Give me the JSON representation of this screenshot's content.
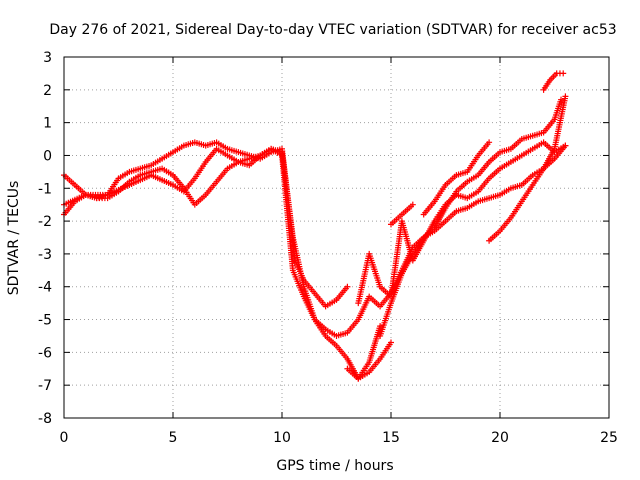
{
  "chart_data": {
    "type": "scatter",
    "title": "Day 276 of 2021, Sidereal Day-to-day VTEC variation (SDTVAR) for receiver ac53",
    "xlabel": "GPS time / hours",
    "ylabel": "SDTVAR / TECUs",
    "xlim": [
      0,
      25
    ],
    "ylim": [
      -8,
      3
    ],
    "xticks": [
      "0",
      "5",
      "10",
      "15",
      "20",
      "25"
    ],
    "yticks": [
      "3",
      "2",
      "1",
      "0",
      "-1",
      "-2",
      "-3",
      "-4",
      "-5",
      "-6",
      "-7",
      "-8"
    ],
    "grid": true,
    "marker": "+",
    "color": "#ff0000",
    "series": [
      {
        "x": [
          0.0,
          0.5,
          1.0,
          1.5,
          2.0,
          2.5,
          3.0,
          3.5,
          4.0,
          4.5,
          5.0,
          5.5,
          6.0,
          6.5,
          7.0,
          7.5,
          8.0,
          8.5,
          9.0,
          9.5,
          10.0,
          10.3,
          10.6,
          11.0,
          11.5,
          12.0,
          12.5,
          13.0
        ],
        "y": [
          -1.8,
          -1.4,
          -1.2,
          -1.3,
          -1.2,
          -0.7,
          -0.5,
          -0.4,
          -0.3,
          -0.1,
          0.1,
          0.3,
          0.4,
          0.3,
          0.4,
          0.2,
          0.1,
          0.0,
          -0.1,
          0.1,
          0.2,
          -1.5,
          -3.2,
          -3.8,
          -4.2,
          -4.6,
          -4.4,
          -4.0
        ]
      },
      {
        "x": [
          0.0,
          0.5,
          1.0,
          1.5,
          2.0,
          2.5,
          3.0,
          3.5,
          4.0,
          4.5,
          5.0,
          5.5,
          6.0,
          6.5,
          7.0,
          7.5,
          8.0,
          8.5,
          9.0,
          9.5,
          10.0,
          10.5,
          11.0,
          11.5,
          12.0,
          12.5,
          13.0,
          13.5,
          14.0,
          14.5
        ],
        "y": [
          -0.6,
          -0.9,
          -1.2,
          -1.3,
          -1.3,
          -1.1,
          -0.8,
          -0.6,
          -0.5,
          -0.4,
          -0.6,
          -1.0,
          -1.5,
          -1.2,
          -0.8,
          -0.4,
          -0.2,
          -0.1,
          0.0,
          0.2,
          0.1,
          -2.5,
          -4.0,
          -5.0,
          -5.5,
          -5.8,
          -6.2,
          -6.8,
          -6.3,
          -5.2
        ]
      },
      {
        "x": [
          0.0,
          1.0,
          2.0,
          3.0,
          4.0,
          5.0,
          5.5,
          6.0,
          6.5,
          7.0,
          7.5,
          8.0,
          8.5,
          9.0,
          9.5,
          10.0,
          10.5,
          11.0,
          11.5,
          12.0,
          12.5,
          13.0,
          13.5,
          14.0,
          14.5,
          15.0,
          15.5,
          16.0,
          16.5,
          17.0,
          17.5,
          18.0,
          18.5,
          19.0,
          19.5,
          20.0,
          20.5,
          21.0,
          21.5,
          22.0,
          22.5,
          23.0
        ],
        "y": [
          -1.5,
          -1.2,
          -1.2,
          -0.9,
          -0.6,
          -0.9,
          -1.1,
          -0.7,
          -0.2,
          0.2,
          0.0,
          -0.2,
          -0.3,
          0.0,
          0.2,
          0.0,
          -3.5,
          -4.3,
          -5.0,
          -5.3,
          -5.5,
          -5.4,
          -5.0,
          -4.3,
          -4.6,
          -4.2,
          -3.5,
          -2.8,
          -2.5,
          -2.3,
          -2.0,
          -1.7,
          -1.6,
          -1.4,
          -1.3,
          -1.2,
          -1.0,
          -0.9,
          -0.6,
          -0.4,
          -0.1,
          0.3
        ]
      },
      {
        "x": [
          13.5,
          14.0,
          14.5,
          15.0,
          15.5,
          16.0,
          16.5,
          17.0,
          17.5,
          18.0,
          18.5,
          19.0,
          19.5,
          20.0,
          20.5,
          21.0,
          21.5,
          22.0,
          22.5,
          23.0
        ],
        "y": [
          -4.5,
          -3.0,
          -4.0,
          -4.3,
          -2.0,
          -3.2,
          -2.6,
          -2.0,
          -1.5,
          -1.2,
          -1.3,
          -1.1,
          -0.7,
          -0.4,
          -0.2,
          0.0,
          0.2,
          0.4,
          0.1,
          0.3
        ]
      },
      {
        "x": [
          14.5,
          15.0,
          15.5,
          16.0,
          16.5,
          17.0,
          17.5,
          18.0,
          18.5,
          19.0,
          19.5,
          20.0,
          20.5,
          21.0,
          21.5,
          22.0,
          22.5,
          22.8
        ],
        "y": [
          -5.5,
          -4.5,
          -3.6,
          -3.0,
          -2.5,
          -2.2,
          -1.6,
          -1.1,
          -0.8,
          -0.6,
          -0.2,
          0.1,
          0.2,
          0.5,
          0.6,
          0.7,
          1.1,
          1.7
        ]
      },
      {
        "x": [
          19.5,
          20.0,
          20.5,
          21.0,
          21.5,
          22.0,
          22.5,
          23.0
        ],
        "y": [
          -2.6,
          -2.3,
          -1.9,
          -1.4,
          -0.9,
          -0.4,
          0.2,
          1.8
        ]
      },
      {
        "x": [
          16.5,
          17.0,
          17.5,
          18.0,
          18.5,
          19.0,
          19.5
        ],
        "y": [
          -1.8,
          -1.4,
          -0.9,
          -0.6,
          -0.5,
          0.0,
          0.4
        ]
      },
      {
        "x": [
          22.0,
          22.3,
          22.6,
          22.9
        ],
        "y": [
          2.0,
          2.3,
          2.5,
          2.5
        ]
      },
      {
        "x": [
          15.0,
          15.5,
          16.0
        ],
        "y": [
          -2.1,
          -1.8,
          -1.5
        ]
      },
      {
        "x": [
          13.0,
          13.5,
          14.0,
          14.5,
          15.0
        ],
        "y": [
          -6.5,
          -6.8,
          -6.6,
          -6.2,
          -5.7
        ]
      }
    ]
  }
}
